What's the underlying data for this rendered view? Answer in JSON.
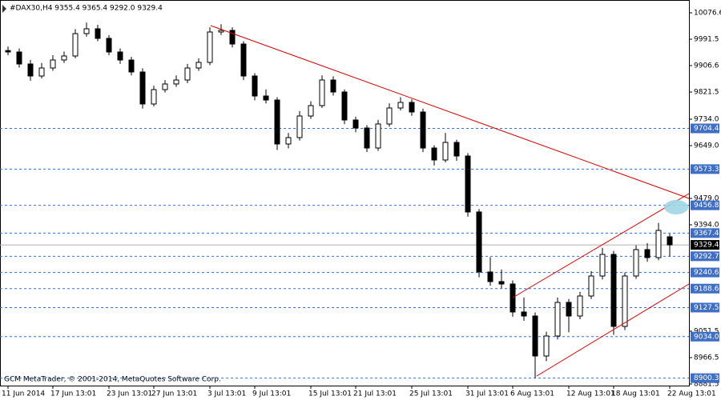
{
  "chart_data": {
    "type": "candlestick",
    "title": "#DAX30,H4  9355.4 9365.4 9292.0 9329.4",
    "footer": "GCM MetaTrader, © 2001-2014, MetaQuotes Software Corp.",
    "categories": [
      "11 Jun 2014",
      null,
      null,
      null,
      "17 Jun 13:01",
      null,
      null,
      null,
      null,
      "23 Jun 13:01",
      null,
      null,
      null,
      "27 Jun 13:01",
      null,
      null,
      null,
      null,
      "3 Jul 13:01",
      null,
      null,
      null,
      "9 Jul 13:01",
      null,
      null,
      null,
      null,
      "15 Jul 13:01",
      null,
      null,
      null,
      "21 Jul 13:01",
      null,
      null,
      null,
      null,
      "25 Jul 13:01",
      null,
      null,
      null,
      null,
      "31 Jul 13:01",
      null,
      null,
      null,
      "6 Aug 13:01",
      null,
      null,
      null,
      null,
      "12 Aug 13:01",
      null,
      null,
      null,
      "18 Aug 13:01",
      null,
      null,
      null,
      null,
      "22 Aug 13:01"
    ],
    "open": [
      9955.0,
      9950.4,
      9911.8,
      9873.1,
      9898.9,
      9924.6,
      9937.5,
      10009.6,
      10025.1,
      9994.2,
      9950.4,
      9924.6,
      9886.0,
      9783.0,
      9829.3,
      9847.4,
      9860.2,
      9898.9,
      9916.9,
      10014.8,
      10019.9,
      9976.1,
      9873.1,
      9808.7,
      9795.8,
      9654.2,
      9674.8,
      9744.3,
      9777.8,
      9860.2,
      9821.6,
      9731.5,
      9705.7,
      9641.3,
      9718.6,
      9770.1,
      9788.1,
      9757.2,
      9641.3,
      9602.7,
      9659.3,
      9615.5,
      9435.3,
      9242.1,
      9211.2,
      9203.4,
      9113.3,
      9100.4,
      8971.6,
      9036.0,
      9144.2,
      9100.4,
      9164.8,
      9229.2,
      9298.7,
      9066.9,
      9229.2,
      9314.2,
      9288.4,
      9355.4
    ],
    "high": [
      9968,
      9962,
      9925,
      9915,
      9940,
      9952,
      10024,
      10045,
      10038,
      10005,
      9962,
      9935,
      9898,
      9842,
      9860,
      9875,
      9912,
      9930,
      10030,
      10040,
      10030,
      9985,
      9882,
      9830,
      9805,
      9690,
      9760,
      9792,
      9875,
      9872,
      9830,
      9742,
      9715,
      9732,
      9785,
      9805,
      9798,
      9768,
      9650,
      9690,
      9668,
      9625,
      9445,
      9290,
      9250,
      9215,
      9160,
      9112,
      9050,
      9160,
      9155,
      9178,
      9245,
      9320,
      9310,
      9240,
      9328,
      9335,
      9400,
      9365.4
    ],
    "low": [
      9940,
      9900,
      9858,
      9865,
      9890,
      9915,
      9930,
      10000,
      9985,
      9940,
      9912,
      9875,
      9768,
      9775,
      9820,
      9838,
      9850,
      9890,
      9908,
      10005,
      9965,
      9860,
      9795,
      9785,
      9635,
      9640,
      9665,
      9735,
      9770,
      9810,
      9718,
      9692,
      9628,
      9632,
      9710,
      9762,
      9745,
      9628,
      9585,
      9595,
      9600,
      9420,
      9225,
      9198,
      9190,
      9098,
      9085,
      8900.3,
      8955,
      9025,
      9048,
      9090,
      9155,
      9218,
      9040,
      9055,
      9220,
      9275,
      9280,
      9292.0
    ],
    "close": [
      9950.4,
      9911.8,
      9873.1,
      9898.9,
      9924.6,
      9937.5,
      10009.6,
      10025.1,
      9994.2,
      9950.4,
      9924.6,
      9886.0,
      9783.0,
      9829.3,
      9847.4,
      9860.2,
      9898.9,
      9916.9,
      10014.8,
      10019.9,
      9976.1,
      9873.1,
      9808.7,
      9795.8,
      9654.2,
      9674.8,
      9744.3,
      9777.8,
      9860.2,
      9821.6,
      9731.5,
      9705.7,
      9641.3,
      9718.6,
      9770.1,
      9788.1,
      9757.2,
      9641.3,
      9602.7,
      9659.3,
      9615.5,
      9435.3,
      9242.1,
      9211.2,
      9203.4,
      9113.3,
      9100.4,
      8971.6,
      9036.0,
      9144.2,
      9100.4,
      9164.8,
      9229.2,
      9298.7,
      9066.9,
      9229.2,
      9314.2,
      9288.4,
      9376.0,
      9329.4
    ],
    "ylim": [
      8876.3,
      10117.8
    ],
    "yticks": [
      10076.6,
      9991.5,
      9906.6,
      9821.5,
      {
        "value": 9734,
        "label": "9734.0"
      },
      {
        "value": 9649,
        "label": "9649.0"
      },
      {
        "value": 9479,
        "label": "9479.0"
      },
      {
        "value": 9394,
        "label": "9394.0"
      },
      9051.5,
      8966.5,
      8881.5
    ],
    "levels": [
      9704.4,
      9573.3,
      9456.8,
      9367.4,
      9292.7,
      9240.6,
      9188.6,
      9127.5,
      {
        "value": 9034,
        "label": "9034.0"
      },
      8900.3
    ],
    "current_price": 9329.4,
    "color": "#000000",
    "level_color": "#3f6fc4"
  }
}
